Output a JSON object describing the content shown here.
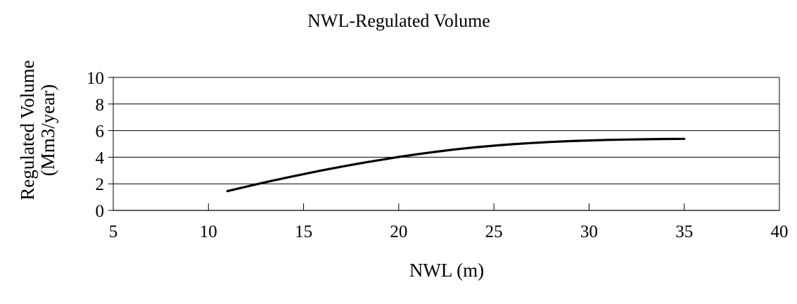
{
  "chart_data": {
    "type": "line",
    "title": "NWL-Regulated Volume",
    "xlabel": "NWL (m)",
    "ylabel_line1": "Regulated Volume",
    "ylabel_line2": "(Mm3/year)",
    "xlim": [
      5,
      40
    ],
    "ylim": [
      0,
      10
    ],
    "x_ticks": [
      "5",
      "10",
      "15",
      "20",
      "25",
      "30",
      "35",
      "40"
    ],
    "y_ticks": [
      "0",
      "2",
      "4",
      "6",
      "8",
      "10"
    ],
    "grid": "horizontal",
    "legend": "none",
    "line_color": "#000000",
    "series": [
      {
        "x": [
          11,
          12,
          13,
          14,
          15,
          16,
          17,
          18,
          19,
          20,
          21,
          22,
          23,
          24,
          25,
          26,
          27,
          28,
          29,
          30,
          31,
          32,
          33,
          34,
          35
        ],
        "values": [
          1.45,
          1.79,
          2.12,
          2.43,
          2.73,
          3.02,
          3.29,
          3.55,
          3.79,
          4.02,
          4.23,
          4.42,
          4.59,
          4.74,
          4.87,
          4.98,
          5.07,
          5.15,
          5.21,
          5.26,
          5.3,
          5.33,
          5.35,
          5.37,
          5.38
        ]
      }
    ]
  }
}
